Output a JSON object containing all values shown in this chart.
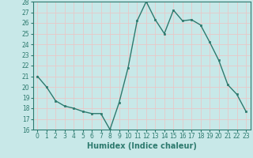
{
  "x": [
    0,
    1,
    2,
    3,
    4,
    5,
    6,
    7,
    8,
    9,
    10,
    11,
    12,
    13,
    14,
    15,
    16,
    17,
    18,
    19,
    20,
    21,
    22,
    23
  ],
  "y": [
    21.0,
    20.0,
    18.7,
    18.2,
    18.0,
    17.7,
    17.5,
    17.5,
    16.0,
    18.5,
    21.8,
    26.2,
    28.0,
    26.3,
    25.0,
    27.2,
    26.2,
    26.3,
    25.8,
    24.2,
    22.5,
    20.2,
    19.3,
    17.7
  ],
  "line_color": "#2d7a6e",
  "marker": "s",
  "marker_size": 2.0,
  "background_color": "#c8e8e8",
  "grid_color": "#e8c8c8",
  "xlabel": "Humidex (Indice chaleur)",
  "ylabel": "",
  "ylim": [
    16,
    28
  ],
  "xlim": [
    -0.5,
    23.5
  ],
  "yticks": [
    16,
    17,
    18,
    19,
    20,
    21,
    22,
    23,
    24,
    25,
    26,
    27,
    28
  ],
  "xticks": [
    0,
    1,
    2,
    3,
    4,
    5,
    6,
    7,
    8,
    9,
    10,
    11,
    12,
    13,
    14,
    15,
    16,
    17,
    18,
    19,
    20,
    21,
    22,
    23
  ],
  "tick_label_fontsize": 5.5,
  "xlabel_fontsize": 7.0,
  "line_width": 1.0
}
